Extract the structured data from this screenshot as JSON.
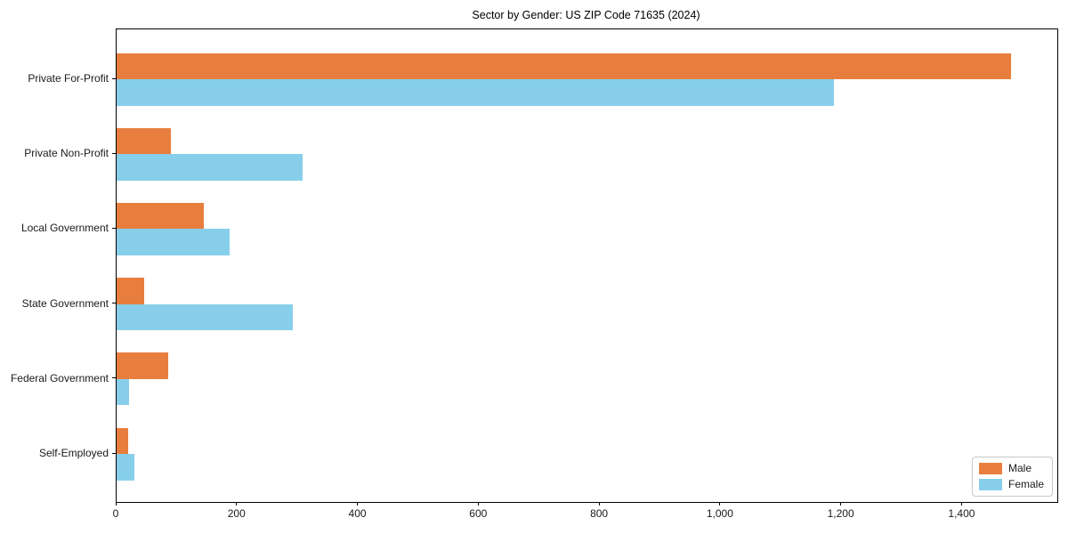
{
  "chart_data": {
    "type": "bar",
    "orientation": "horizontal",
    "title": "Sector by Gender: US ZIP Code 71635 (2024)",
    "categories": [
      "Private For-Profit",
      "Private Non-Profit",
      "Local Government",
      "State Government",
      "Federal Government",
      "Self-Employed"
    ],
    "series": [
      {
        "name": "Male",
        "color": "#e87e3e",
        "values": [
          1480,
          90,
          145,
          46,
          85,
          19
        ]
      },
      {
        "name": "Female",
        "color": "#87ceeb",
        "values": [
          1187,
          308,
          187,
          291,
          21,
          29
        ]
      }
    ],
    "xlabel": "",
    "ylabel": "",
    "xlim": [
      0,
      1557
    ],
    "x_ticks": [
      0,
      200,
      400,
      600,
      800,
      1000,
      1200,
      1400
    ],
    "x_tick_labels": [
      "0",
      "200",
      "400",
      "600",
      "800",
      "1,000",
      "1,200",
      "1,400"
    ],
    "legend": {
      "position": "lower-right",
      "entries": [
        "Male",
        "Female"
      ]
    },
    "grid": false,
    "colors": {
      "axis": "#000000",
      "text": "#1a1a1a",
      "legend_border": "#c9c9c9",
      "background": "#ffffff"
    }
  }
}
